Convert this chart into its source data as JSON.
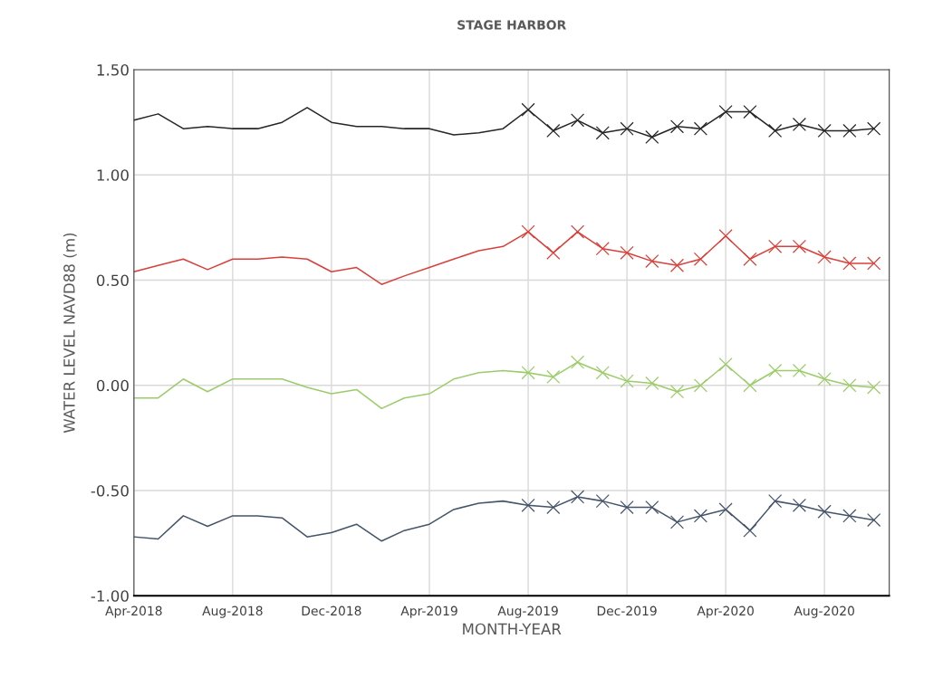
{
  "chart_data": {
    "type": "line",
    "title": "STAGE HARBOR",
    "xlabel": "MONTH-YEAR",
    "ylabel": "WATER LEVEL NAVD88 (m)",
    "xlim": [
      "2018-04",
      "2020-10-20"
    ],
    "xticks": [
      {
        "value": "2018-04",
        "label": "Apr-2018"
      },
      {
        "value": "2018-08",
        "label": "Aug-2018"
      },
      {
        "value": "2018-12",
        "label": "Dec-2018"
      },
      {
        "value": "2019-04",
        "label": "Apr-2019"
      },
      {
        "value": "2019-08",
        "label": "Aug-2019"
      },
      {
        "value": "2019-12",
        "label": "Dec-2019"
      },
      {
        "value": "2020-04",
        "label": "Apr-2020"
      },
      {
        "value": "2020-08",
        "label": "Aug-2020"
      }
    ],
    "ylim": [
      -1.0,
      1.5
    ],
    "yticks": [
      {
        "value": -1.0,
        "label": "-1.00"
      },
      {
        "value": -0.5,
        "label": "-0.50"
      },
      {
        "value": 0.0,
        "label": "0.00"
      },
      {
        "value": 0.5,
        "label": "0.50"
      },
      {
        "value": 1.0,
        "label": "1.00"
      },
      {
        "value": 1.5,
        "label": "1.50"
      }
    ],
    "grid": true,
    "line_style": "solid",
    "series": [
      {
        "color": "#262626",
        "marker": "none",
        "x": [
          "2018-04",
          "2018-05",
          "2018-06",
          "2018-07",
          "2018-08",
          "2018-09",
          "2018-10",
          "2018-11",
          "2018-12",
          "2019-01",
          "2019-02",
          "2019-03",
          "2019-04",
          "2019-05",
          "2019-06",
          "2019-07",
          "2019-08"
        ],
        "values": [
          1.26,
          1.29,
          1.22,
          1.23,
          1.22,
          1.22,
          1.25,
          1.32,
          1.25,
          1.23,
          1.23,
          1.22,
          1.22,
          1.19,
          1.2,
          1.22,
          1.31
        ]
      },
      {
        "color": "#262626",
        "marker": "cross",
        "x": [
          "2019-08",
          "2019-09",
          "2019-10",
          "2019-11",
          "2019-12",
          "2020-01",
          "2020-02",
          "2020-03",
          "2020-04",
          "2020-05",
          "2020-06",
          "2020-07",
          "2020-08",
          "2020-09",
          "2020-10"
        ],
        "values": [
          1.31,
          1.21,
          1.26,
          1.2,
          1.22,
          1.18,
          1.23,
          1.22,
          1.3,
          1.3,
          1.21,
          1.24,
          1.21,
          1.21,
          1.22
        ]
      },
      {
        "color": "#d9403a",
        "marker": "none",
        "x": [
          "2018-04",
          "2018-05",
          "2018-06",
          "2018-07",
          "2018-08",
          "2018-09",
          "2018-10",
          "2018-11",
          "2018-12",
          "2019-01",
          "2019-02",
          "2019-03",
          "2019-04",
          "2019-05",
          "2019-06",
          "2019-07",
          "2019-08"
        ],
        "values": [
          0.54,
          0.57,
          0.6,
          0.55,
          0.6,
          0.6,
          0.61,
          0.6,
          0.54,
          0.56,
          0.48,
          0.52,
          0.56,
          0.6,
          0.64,
          0.66,
          0.73
        ]
      },
      {
        "color": "#d9403a",
        "marker": "cross",
        "x": [
          "2019-08",
          "2019-09",
          "2019-10",
          "2019-11",
          "2019-12",
          "2020-01",
          "2020-02",
          "2020-03",
          "2020-04",
          "2020-05",
          "2020-06",
          "2020-07",
          "2020-08",
          "2020-09",
          "2020-10"
        ],
        "values": [
          0.73,
          0.63,
          0.73,
          0.65,
          0.63,
          0.59,
          0.57,
          0.6,
          0.71,
          0.6,
          0.66,
          0.66,
          0.61,
          0.58,
          0.58
        ]
      },
      {
        "color": "#9ccc6a",
        "marker": "none",
        "x": [
          "2018-04",
          "2018-05",
          "2018-06",
          "2018-07",
          "2018-08",
          "2018-09",
          "2018-10",
          "2018-11",
          "2018-12",
          "2019-01",
          "2019-02",
          "2019-03",
          "2019-04",
          "2019-05",
          "2019-06",
          "2019-07",
          "2019-08"
        ],
        "values": [
          -0.06,
          -0.06,
          0.03,
          -0.03,
          0.03,
          0.03,
          0.03,
          -0.01,
          -0.04,
          -0.02,
          -0.11,
          -0.06,
          -0.04,
          0.03,
          0.06,
          0.07,
          0.06
        ]
      },
      {
        "color": "#9ccc6a",
        "marker": "cross",
        "x": [
          "2019-08",
          "2019-09",
          "2019-10",
          "2019-11",
          "2019-12",
          "2020-01",
          "2020-02",
          "2020-03",
          "2020-04",
          "2020-05",
          "2020-06",
          "2020-07",
          "2020-08",
          "2020-09",
          "2020-10"
        ],
        "values": [
          0.06,
          0.04,
          0.11,
          0.06,
          0.02,
          0.01,
          -0.03,
          0.0,
          0.1,
          0.0,
          0.07,
          0.07,
          0.03,
          0.0,
          -0.01
        ]
      },
      {
        "color": "#44546a",
        "marker": "none",
        "x": [
          "2018-04",
          "2018-05",
          "2018-06",
          "2018-07",
          "2018-08",
          "2018-09",
          "2018-10",
          "2018-11",
          "2018-12",
          "2019-01",
          "2019-02",
          "2019-03",
          "2019-04",
          "2019-05",
          "2019-06",
          "2019-07",
          "2019-08"
        ],
        "values": [
          -0.72,
          -0.73,
          -0.62,
          -0.67,
          -0.62,
          -0.62,
          -0.63,
          -0.72,
          -0.7,
          -0.66,
          -0.74,
          -0.69,
          -0.66,
          -0.59,
          -0.56,
          -0.55,
          -0.57
        ]
      },
      {
        "color": "#44546a",
        "marker": "cross",
        "x": [
          "2019-08",
          "2019-09",
          "2019-10",
          "2019-11",
          "2019-12",
          "2020-01",
          "2020-02",
          "2020-03",
          "2020-04",
          "2020-05",
          "2020-06",
          "2020-07",
          "2020-08",
          "2020-09",
          "2020-10"
        ],
        "values": [
          -0.57,
          -0.58,
          -0.53,
          -0.55,
          -0.58,
          -0.58,
          -0.65,
          -0.62,
          -0.59,
          -0.69,
          -0.55,
          -0.57,
          -0.6,
          -0.62,
          -0.64
        ]
      }
    ]
  }
}
